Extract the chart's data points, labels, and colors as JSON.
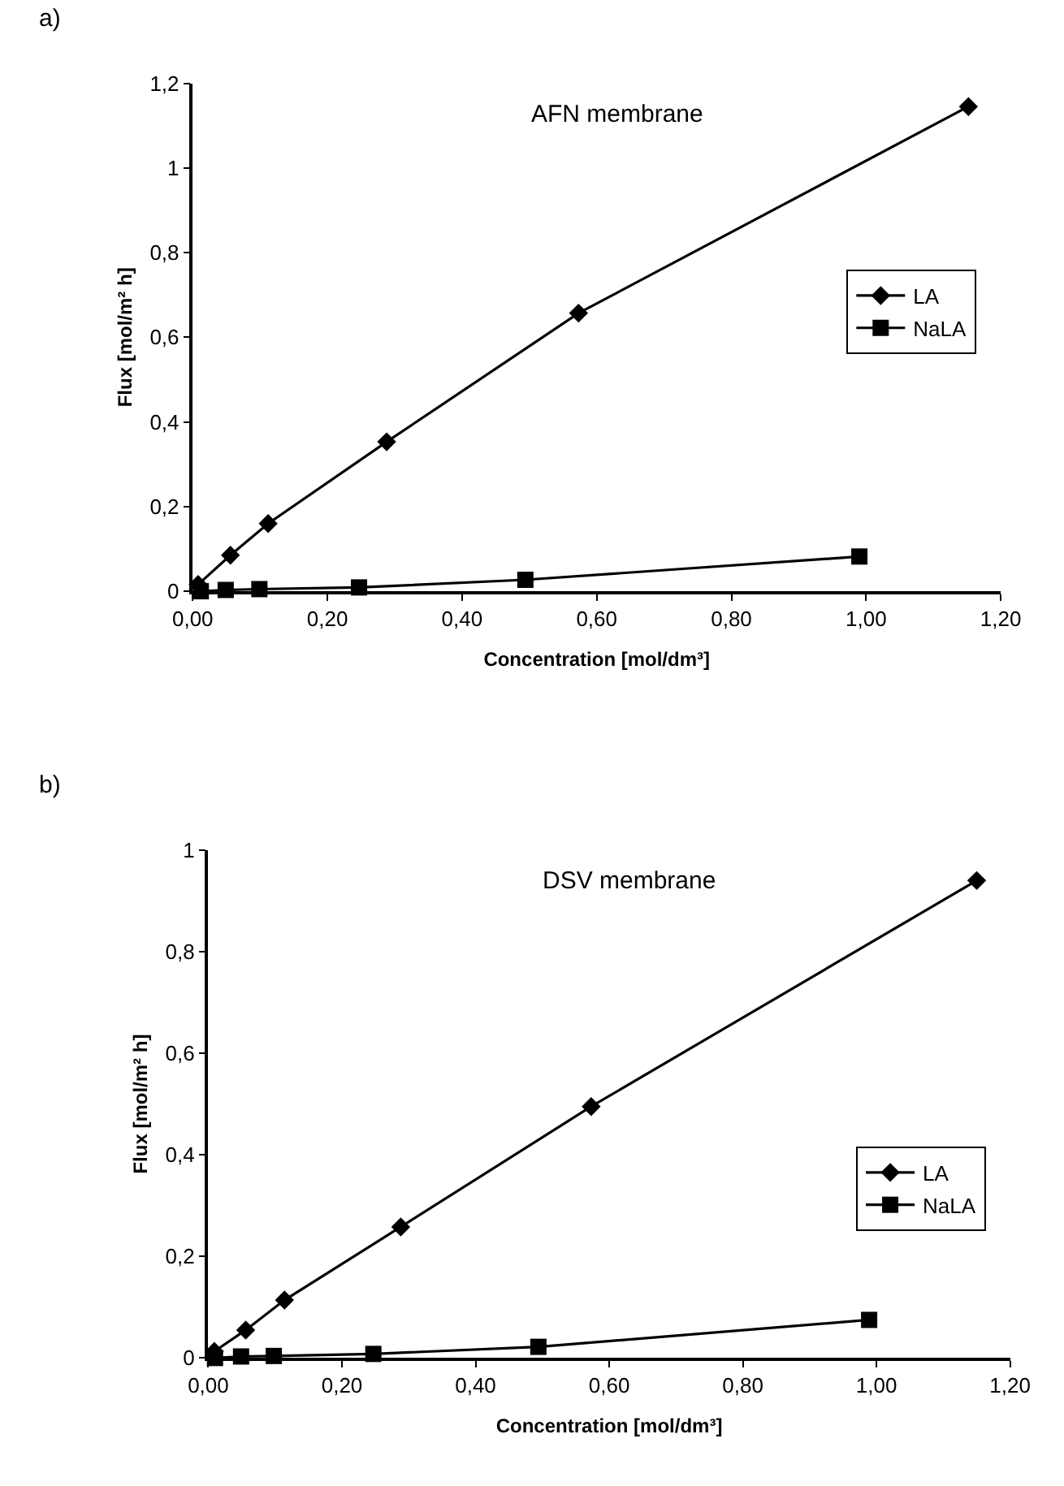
{
  "chart_data": [
    {
      "type": "line",
      "title": "AFN membrane",
      "xlabel": "Concentration [mol/dm³]",
      "ylabel": "Flux [mol/m² h]",
      "annotations": [
        "a)"
      ],
      "xlim": [
        0,
        1.2
      ],
      "ylim": [
        0,
        1.2
      ],
      "grid": false,
      "legend": "right",
      "line_style": "solid",
      "xticks": [
        {
          "value": 0,
          "label": "0,00"
        },
        {
          "value": 0.2,
          "label": "0,20"
        },
        {
          "value": 0.4,
          "label": "0,40"
        },
        {
          "value": 0.6,
          "label": "0,60"
        },
        {
          "value": 0.8,
          "label": "0,80"
        },
        {
          "value": 1.0,
          "label": "1,00"
        },
        {
          "value": 1.2,
          "label": "1,20"
        }
      ],
      "yticks": [
        0,
        {
          "value": 0.2,
          "label": "0,2"
        },
        {
          "value": 0.4,
          "label": "0,4"
        },
        {
          "value": 0.6,
          "label": "0,6"
        },
        {
          "value": 0.8,
          "label": "0,8"
        },
        1,
        {
          "value": 1.2,
          "label": "1,2"
        }
      ],
      "series": [
        {
          "name": "LA",
          "color": "#000000",
          "marker": "diamond",
          "x": [
            0.008,
            0.056,
            0.112,
            0.288,
            0.573,
            1.152
          ],
          "values": [
            0.016,
            0.085,
            0.16,
            0.353,
            0.657,
            1.145
          ]
        },
        {
          "name": "NaLA",
          "color": "#000000",
          "marker": "square",
          "x": [
            0.012,
            0.049,
            0.099,
            0.247,
            0.494,
            0.99
          ],
          "values": [
            0,
            0.003,
            0.005,
            0.009,
            0.027,
            0.082
          ]
        }
      ]
    },
    {
      "type": "line",
      "title": "DSV membrane",
      "xlabel": "Concentration [mol/dm³]",
      "ylabel": "Flux [mol/m² h]",
      "annotations": [
        "b)"
      ],
      "xlim": [
        0,
        1.2
      ],
      "ylim": [
        0,
        1
      ],
      "grid": false,
      "legend": "bottom right",
      "line_style": "solid",
      "xticks": [
        {
          "value": 0,
          "label": "0,00"
        },
        {
          "value": 0.2,
          "label": "0,20"
        },
        {
          "value": 0.4,
          "label": "0,40"
        },
        {
          "value": 0.6,
          "label": "0,60"
        },
        {
          "value": 0.8,
          "label": "0,80"
        },
        {
          "value": 1.0,
          "label": "1,00"
        },
        {
          "value": 1.2,
          "label": "1,20"
        }
      ],
      "yticks": [
        0,
        {
          "value": 0.2,
          "label": "0,2"
        },
        {
          "value": 0.4,
          "label": "0,4"
        },
        {
          "value": 0.6,
          "label": "0,6"
        },
        {
          "value": 0.8,
          "label": "0,8"
        },
        1
      ],
      "series": [
        {
          "name": "LA",
          "color": "#000000",
          "marker": "diamond",
          "x": [
            0.009,
            0.056,
            0.114,
            0.288,
            0.573,
            1.15
          ],
          "values": [
            0.013,
            0.055,
            0.114,
            0.258,
            0.495,
            0.94
          ]
        },
        {
          "name": "NaLA",
          "color": "#000000",
          "marker": "square",
          "x": [
            0.01,
            0.049,
            0.098,
            0.247,
            0.494,
            0.989
          ],
          "values": [
            0,
            0.003,
            0.004,
            0.008,
            0.022,
            0.075
          ]
        }
      ]
    }
  ]
}
